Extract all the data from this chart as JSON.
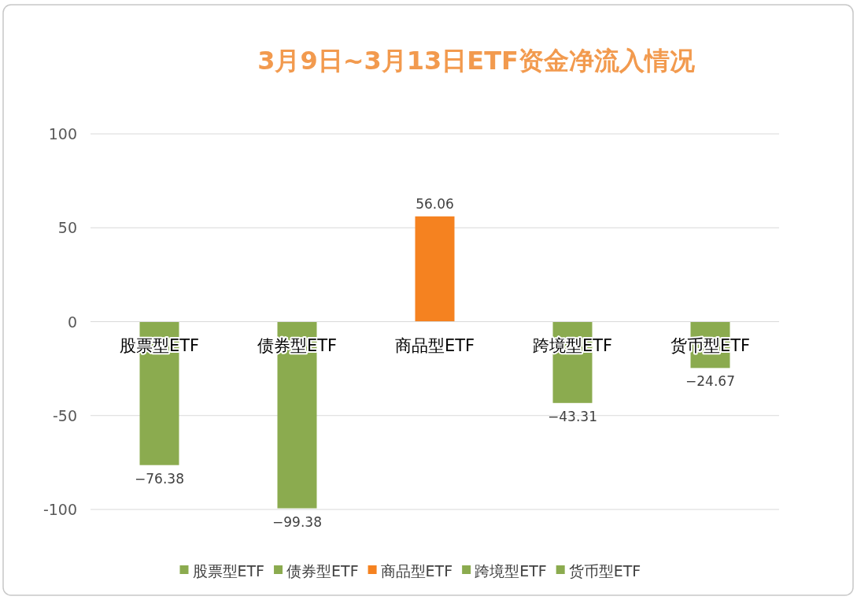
{
  "chart_data": {
    "type": "bar",
    "title": "3月9日~3月13日ETF资金净流入情况",
    "categories": [
      "股票型ETF",
      "债券型ETF",
      "商品型ETF",
      "跨境型ETF",
      "货币型ETF"
    ],
    "series": [
      {
        "name": "股票型ETF",
        "color": "#8bab4f",
        "values": [
          -76.38,
          null,
          null,
          null,
          null
        ]
      },
      {
        "name": "债券型ETF",
        "color": "#8bab4f",
        "values": [
          null,
          -99.38,
          null,
          null,
          null
        ]
      },
      {
        "name": "商品型ETF",
        "color": "#f58220",
        "values": [
          null,
          null,
          56.06,
          null,
          null
        ]
      },
      {
        "name": "跨境型ETF",
        "color": "#8bab4f",
        "values": [
          null,
          null,
          null,
          -43.31,
          null
        ]
      },
      {
        "name": "货币型ETF",
        "color": "#8bab4f",
        "values": [
          null,
          null,
          null,
          null,
          -24.67
        ]
      }
    ],
    "ylim": [
      -100,
      100
    ],
    "yticks": [
      -100,
      -50,
      0,
      50,
      100
    ],
    "grid": "y",
    "legend": "bottom",
    "data_labels": true
  }
}
